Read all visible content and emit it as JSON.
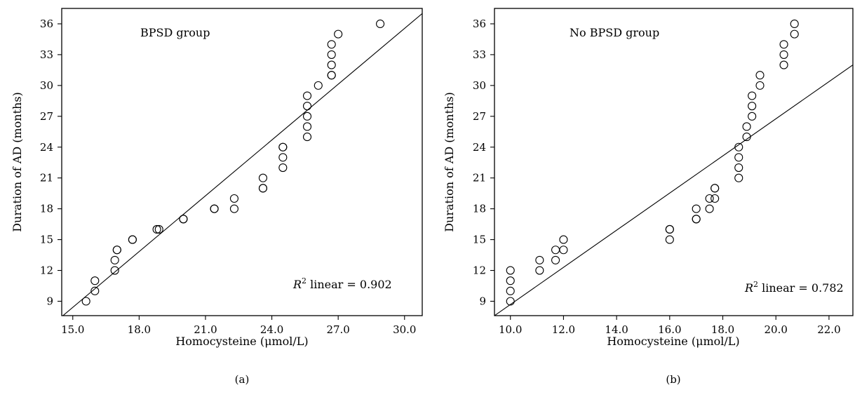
{
  "chart_data": [
    {
      "type": "scatter",
      "panel_label": "(a)",
      "xlabel": "Homocysteine (μmol/L)",
      "ylabel": "Duration of AD (months)",
      "xlim": [
        14.5,
        30.8
      ],
      "ylim": [
        7.6,
        37.5
      ],
      "x_ticks": [
        15.0,
        18.0,
        21.0,
        24.0,
        27.0,
        30.0
      ],
      "x_tick_labels": [
        "15.0",
        "18.0",
        "21.0",
        "24.0",
        "27.0",
        "30.0"
      ],
      "y_ticks": [
        9,
        12,
        15,
        18,
        21,
        24,
        27,
        30,
        33,
        36
      ],
      "y_tick_labels": [
        "9",
        "12",
        "15",
        "18",
        "21",
        "24",
        "27",
        "30",
        "33",
        "36"
      ],
      "grid": false,
      "group_label": "BPSD group",
      "r2_prefix": "R",
      "r2_sup": "2",
      "r2_suffix": " linear = 0.902",
      "fit_line": [
        [
          14.5,
          7.5
        ],
        [
          30.8,
          37.0
        ]
      ],
      "points": [
        [
          15.6,
          9
        ],
        [
          16.0,
          10
        ],
        [
          16.0,
          11
        ],
        [
          16.9,
          12
        ],
        [
          16.9,
          13
        ],
        [
          17.0,
          14
        ],
        [
          17.0,
          14
        ],
        [
          17.7,
          15
        ],
        [
          17.7,
          15
        ],
        [
          18.8,
          16
        ],
        [
          18.9,
          16
        ],
        [
          20.0,
          17
        ],
        [
          20.0,
          17
        ],
        [
          21.4,
          18
        ],
        [
          21.4,
          18
        ],
        [
          22.3,
          18
        ],
        [
          22.3,
          19
        ],
        [
          23.6,
          20
        ],
        [
          23.6,
          20
        ],
        [
          23.6,
          21
        ],
        [
          24.5,
          22
        ],
        [
          24.5,
          23
        ],
        [
          24.5,
          24
        ],
        [
          24.5,
          24
        ],
        [
          25.6,
          25
        ],
        [
          25.6,
          26
        ],
        [
          25.6,
          27
        ],
        [
          25.6,
          28
        ],
        [
          25.6,
          29
        ],
        [
          26.1,
          30
        ],
        [
          26.7,
          31
        ],
        [
          26.7,
          31
        ],
        [
          26.7,
          32
        ],
        [
          26.7,
          33
        ],
        [
          26.7,
          34
        ],
        [
          27.0,
          35
        ],
        [
          28.9,
          36
        ]
      ]
    },
    {
      "type": "scatter",
      "panel_label": "(b)",
      "xlabel": "Homocysteine (μmol/L)",
      "ylabel": "Duration of AD (months)",
      "xlim": [
        9.4,
        22.9
      ],
      "ylim": [
        7.6,
        37.5
      ],
      "x_ticks": [
        10.0,
        12.0,
        14.0,
        16.0,
        18.0,
        20.0,
        22.0
      ],
      "x_tick_labels": [
        "10.0",
        "12.0",
        "14.0",
        "16.0",
        "18.0",
        "20.0",
        "22.0"
      ],
      "y_ticks": [
        9,
        12,
        15,
        18,
        21,
        24,
        27,
        30,
        33,
        36
      ],
      "y_tick_labels": [
        "9",
        "12",
        "15",
        "18",
        "21",
        "24",
        "27",
        "30",
        "33",
        "36"
      ],
      "grid": false,
      "group_label": "No BPSD group",
      "r2_prefix": "R",
      "r2_sup": "2",
      "r2_suffix": " linear = 0.782",
      "fit_line": [
        [
          9.4,
          7.6
        ],
        [
          22.9,
          32.0
        ]
      ],
      "points": [
        [
          10.0,
          9
        ],
        [
          10.0,
          10
        ],
        [
          10.0,
          11
        ],
        [
          10.0,
          12
        ],
        [
          11.1,
          12
        ],
        [
          11.1,
          13
        ],
        [
          11.7,
          13
        ],
        [
          11.7,
          14
        ],
        [
          12.0,
          14
        ],
        [
          12.0,
          15
        ],
        [
          16.0,
          15
        ],
        [
          16.0,
          16
        ],
        [
          16.0,
          16
        ],
        [
          17.0,
          17
        ],
        [
          17.0,
          17
        ],
        [
          17.0,
          18
        ],
        [
          17.5,
          18
        ],
        [
          17.5,
          19
        ],
        [
          17.7,
          19
        ],
        [
          17.7,
          20
        ],
        [
          17.7,
          20
        ],
        [
          18.6,
          21
        ],
        [
          18.6,
          22
        ],
        [
          18.6,
          23
        ],
        [
          18.6,
          24
        ],
        [
          18.9,
          25
        ],
        [
          18.9,
          26
        ],
        [
          19.1,
          27
        ],
        [
          19.1,
          28
        ],
        [
          19.1,
          29
        ],
        [
          19.4,
          30
        ],
        [
          19.4,
          31
        ],
        [
          20.3,
          32
        ],
        [
          20.3,
          33
        ],
        [
          20.3,
          34
        ],
        [
          20.7,
          35
        ],
        [
          20.7,
          36
        ]
      ]
    }
  ]
}
